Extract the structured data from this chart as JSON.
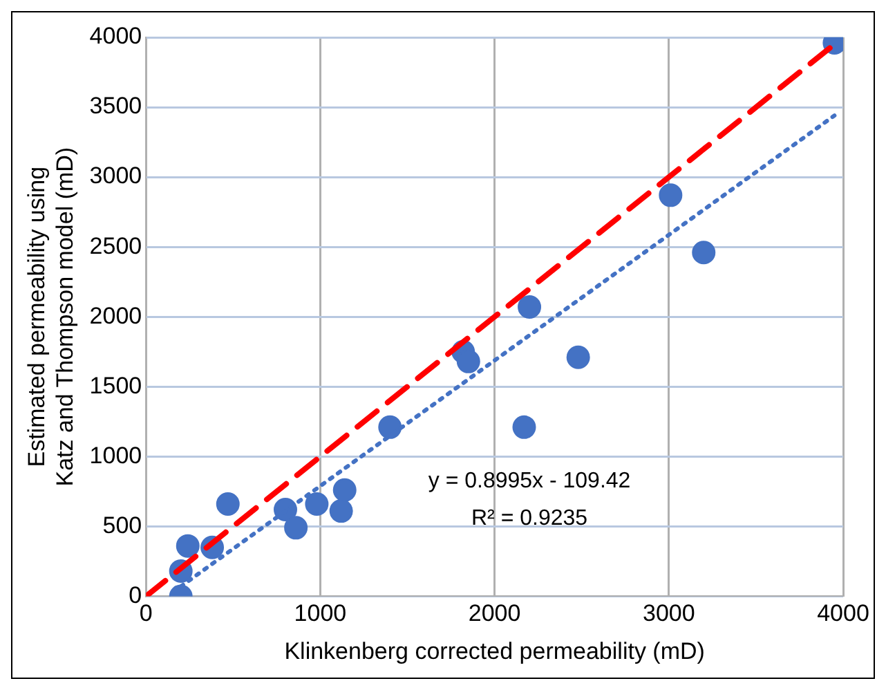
{
  "chart_data": {
    "type": "scatter",
    "xlabel": "Klinkenberg corrected permeability (mD)",
    "ylabel": "Estimated permeability using Katz and Thompson model (mD)",
    "xlim": [
      0,
      4000
    ],
    "xticks": [
      0,
      1000,
      2000,
      3000,
      4000
    ],
    "ylim": [
      0,
      4000
    ],
    "yticks": [
      0,
      500,
      1000,
      1500,
      2000,
      2500,
      3000,
      3500,
      4000
    ],
    "grid": true,
    "legend": false,
    "series": [
      {
        "color": "#4472c4",
        "marker": "circle",
        "x": [
          200,
          200,
          240,
          380,
          470,
          800,
          860,
          980,
          1120,
          1140,
          1400,
          1820,
          1850,
          2200,
          2170,
          2480,
          3010,
          3200,
          3950
        ],
        "values": [
          0,
          180,
          360,
          350,
          660,
          620,
          490,
          660,
          610,
          760,
          1210,
          1750,
          1680,
          2070,
          1210,
          1710,
          2870,
          2460,
          3960
        ]
      },
      {
        "type": "line",
        "color": "#ff0000",
        "marker": "none",
        "line_style": "dashed",
        "x": [
          0,
          3950
        ],
        "values": [
          0,
          3950
        ]
      },
      {
        "type": "line",
        "color": "#4472c4",
        "marker": "none",
        "line_style": "dotted",
        "x": [
          200,
          3950
        ],
        "values": [
          70,
          3440
        ]
      }
    ],
    "annotations": [
      "y = 0.8995x - 109.42",
      "R² = 0.9235"
    ]
  }
}
